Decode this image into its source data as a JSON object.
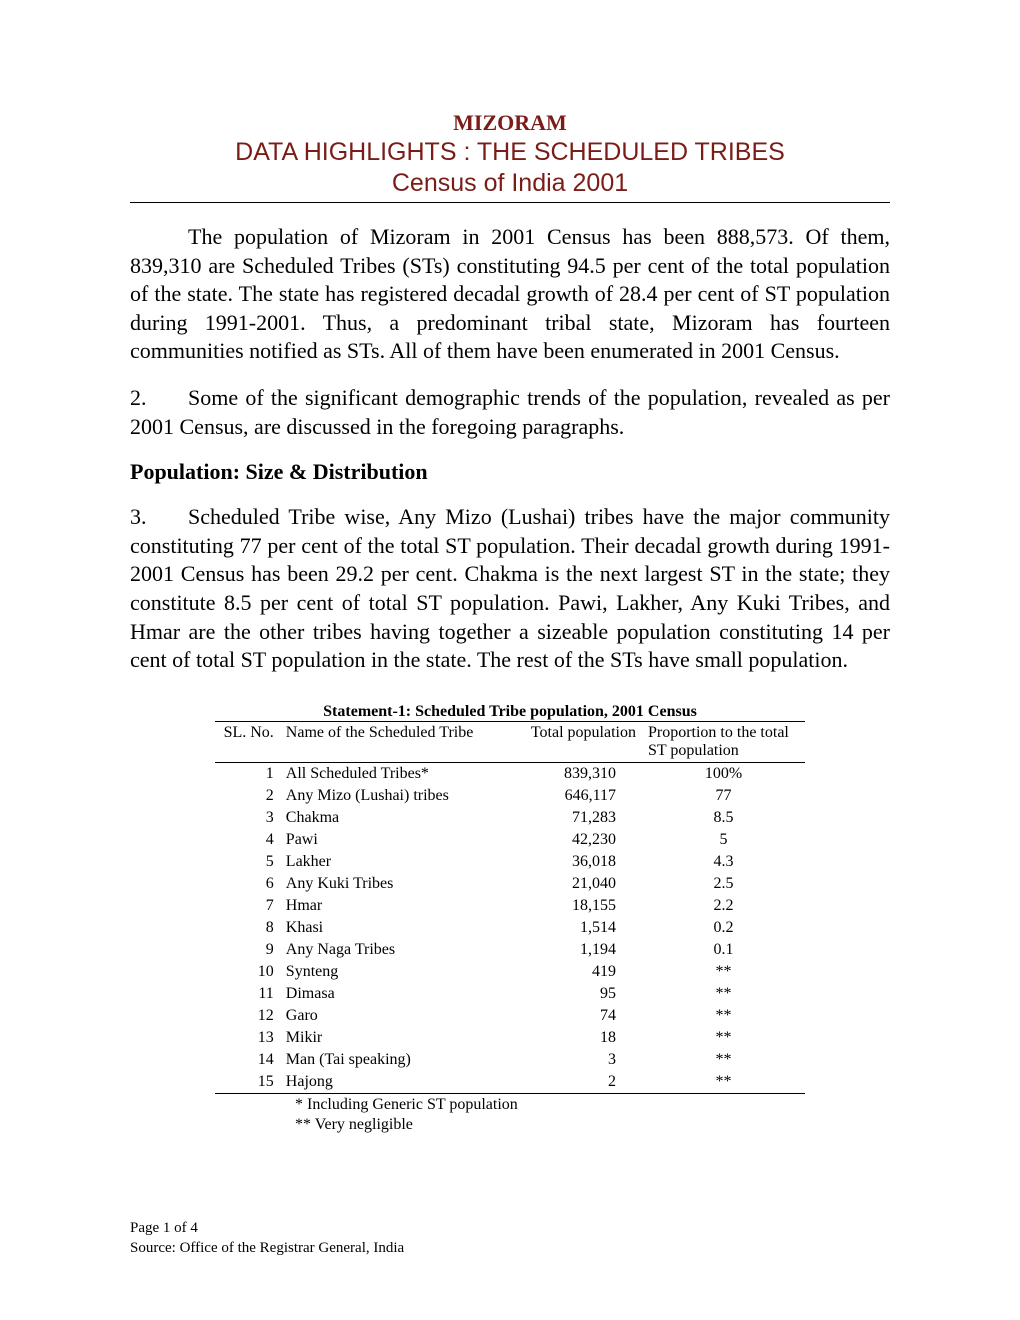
{
  "header": {
    "state": "MIZORAM",
    "subtitle": "DATA HIGHLIGHTS : THE SCHEDULED TRIBES",
    "census_line": "Census of India 2001",
    "state_color": "#7a1d18",
    "subtitle_color": "#7a1d18"
  },
  "paragraphs": {
    "p1": "The population of Mizoram in 2001 Census has been 888,573. Of them, 839,310 are Scheduled Tribes (STs) constituting 94.5 per cent of the total population of the state. The state has registered decadal growth of 28.4 per cent of ST population during 1991-2001. Thus, a predominant tribal state, Mizoram has fourteen communities notified as STs. All of them have been enumerated in 2001 Census.",
    "p2_num": "2.",
    "p2": "Some of the significant demographic trends of the population, revealed as per 2001 Census, are discussed in the foregoing paragraphs.",
    "section_heading": "Population: Size & Distribution",
    "p3_num": "3.",
    "p3": "Scheduled Tribe wise, Any Mizo (Lushai) tribes have the major community constituting 77 per cent of the total ST population. Their decadal growth during 1991-2001 Census has been 29.2 per cent.  Chakma is the next largest ST in the state; they constitute 8.5 per cent of total ST population. Pawi, Lakher, Any Kuki Tribes, and Hmar are the other tribes having together a sizeable population constituting 14 per cent of total ST population in the state. The rest of the STs have small population."
  },
  "table": {
    "title": "Statement-1: Scheduled Tribe population, 2001 Census",
    "columns": {
      "sl": "SL. No.",
      "name": "Name of the Scheduled Tribe",
      "pop": "Total population",
      "prop": "Proportion to the total ST population"
    },
    "rows": [
      {
        "sl": "1",
        "name": "All Scheduled Tribes*",
        "pop": "839,310",
        "prop": "100%"
      },
      {
        "sl": "2",
        "name": "Any Mizo (Lushai) tribes",
        "pop": "646,117",
        "prop": "77"
      },
      {
        "sl": "3",
        "name": "Chakma",
        "pop": "71,283",
        "prop": "8.5"
      },
      {
        "sl": "4",
        "name": "Pawi",
        "pop": "42,230",
        "prop": "5"
      },
      {
        "sl": "5",
        "name": "Lakher",
        "pop": "36,018",
        "prop": "4.3"
      },
      {
        "sl": "6",
        "name": "Any Kuki Tribes",
        "pop": "21,040",
        "prop": "2.5"
      },
      {
        "sl": "7",
        "name": "Hmar",
        "pop": "18,155",
        "prop": "2.2"
      },
      {
        "sl": "8",
        "name": "Khasi",
        "pop": "1,514",
        "prop": "0.2"
      },
      {
        "sl": "9",
        "name": "Any Naga Tribes",
        "pop": "1,194",
        "prop": "0.1"
      },
      {
        "sl": "10",
        "name": "Synteng",
        "pop": "419",
        "prop": "**"
      },
      {
        "sl": "11",
        "name": "Dimasa",
        "pop": "95",
        "prop": "**"
      },
      {
        "sl": "12",
        "name": "Garo",
        "pop": "74",
        "prop": "**"
      },
      {
        "sl": "13",
        "name": "Mikir",
        "pop": "18",
        "prop": "**"
      },
      {
        "sl": "14",
        "name": "Man (Tai speaking)",
        "pop": "3",
        "prop": "**"
      },
      {
        "sl": "15",
        "name": "Hajong",
        "pop": "2",
        "prop": "**"
      }
    ],
    "note1": "* Including Generic ST population",
    "note2": "** Very negligible"
  },
  "footer": {
    "page_line": "Page 1 of 4",
    "source_line": "Source: Office of the Registrar General, India"
  }
}
